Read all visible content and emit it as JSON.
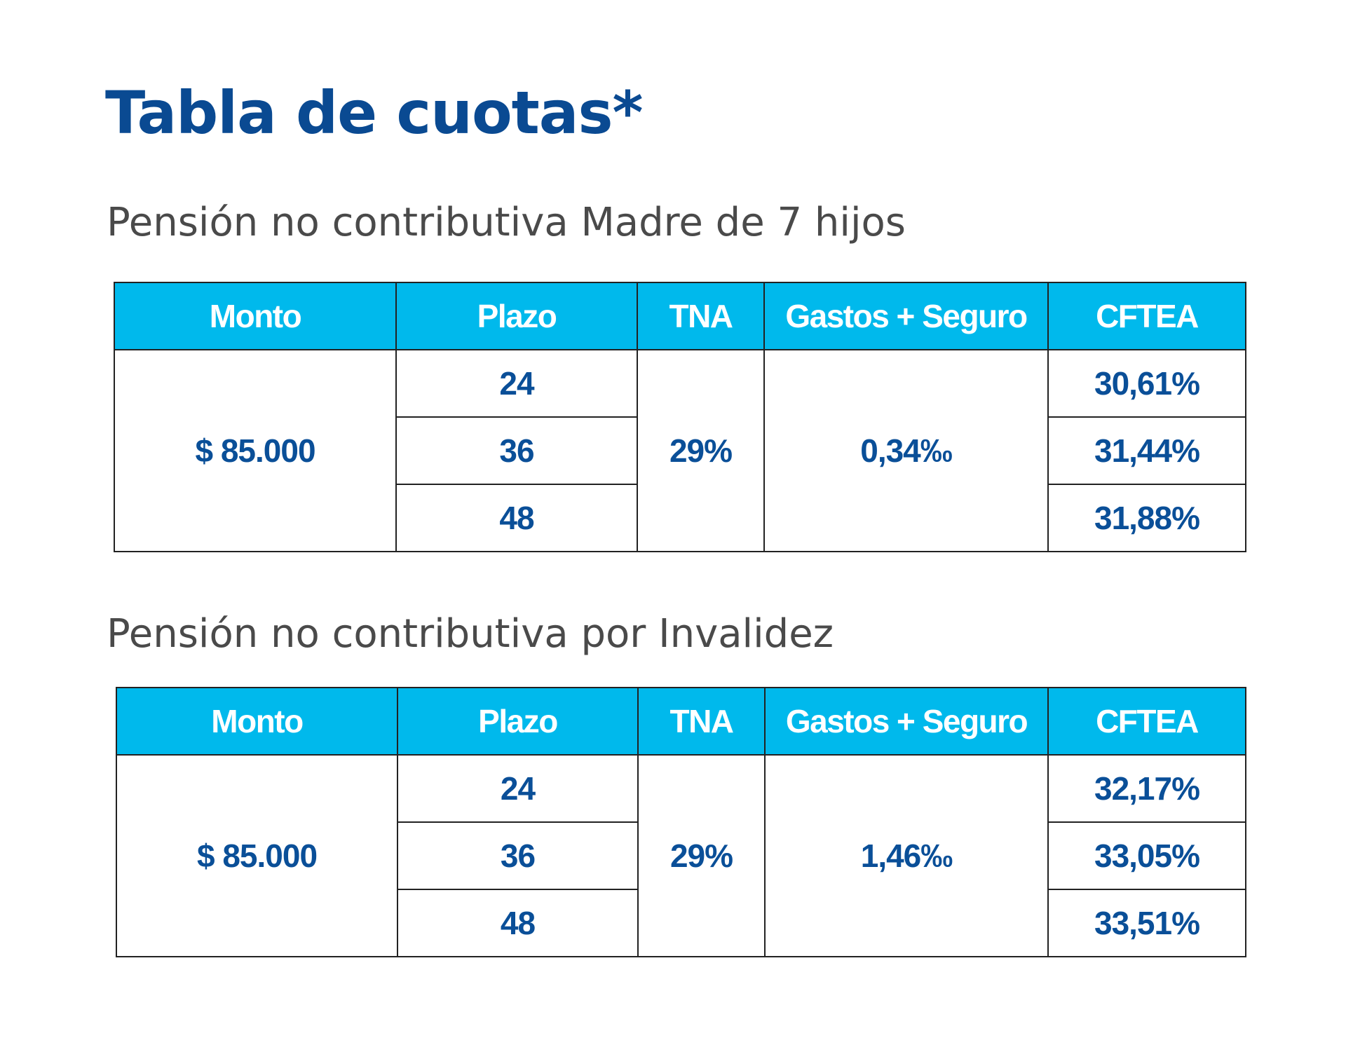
{
  "title": "Tabla de cuotas*",
  "headers": [
    "Monto",
    "Plazo",
    "TNA",
    "Gastos + Seguro",
    "CFTEA"
  ],
  "colors": {
    "header_bg": "#00b9ec",
    "title": "#0a4a92",
    "value_text": "#0a4f98"
  },
  "tables": [
    {
      "subtitle": "Pensión no contributiva Madre de 7 hijos",
      "monto": "$ 85.000",
      "tna": "29%",
      "gastos": "0,34‰",
      "plazos": [
        "24",
        "36",
        "48"
      ],
      "cftea": [
        "30,61%",
        "31,44%",
        "31,88%"
      ]
    },
    {
      "subtitle": "Pensión no contributiva por Invalidez",
      "monto": "$ 85.000",
      "tna": "29%",
      "gastos": "1,46‰",
      "plazos": [
        "24",
        "36",
        "48"
      ],
      "cftea": [
        "32,17%",
        "33,05%",
        "33,51%"
      ]
    }
  ]
}
